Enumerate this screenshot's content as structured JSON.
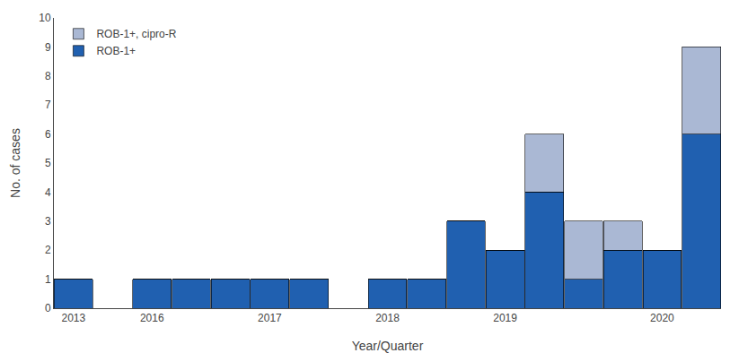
{
  "chart_data": {
    "type": "bar",
    "stacked": true,
    "xlabel": "Year/Quarter",
    "ylabel": "No. of cases",
    "categories": [
      "2013",
      null,
      "2016",
      null,
      null,
      "2017",
      null,
      null,
      "2018",
      null,
      null,
      "2019",
      null,
      null,
      null,
      "2020",
      null
    ],
    "series": [
      {
        "name": "ROB-1+",
        "color": "#2060b0",
        "values": [
          1,
          null,
          1,
          1,
          1,
          1,
          1,
          null,
          1,
          1,
          3,
          2,
          4,
          1,
          2,
          2,
          6
        ]
      },
      {
        "name": "ROB-1+, cipro-R",
        "color": "#aab8d4",
        "values": [
          0,
          null,
          0,
          0,
          0,
          0,
          0,
          null,
          0,
          0,
          0,
          0,
          2,
          2,
          1,
          0,
          3
        ]
      }
    ],
    "ylim": [
      0,
      10
    ],
    "yticks": [
      0,
      1,
      2,
      3,
      4,
      5,
      6,
      7,
      8,
      9,
      10
    ],
    "grid": false,
    "legend": "upper left"
  }
}
